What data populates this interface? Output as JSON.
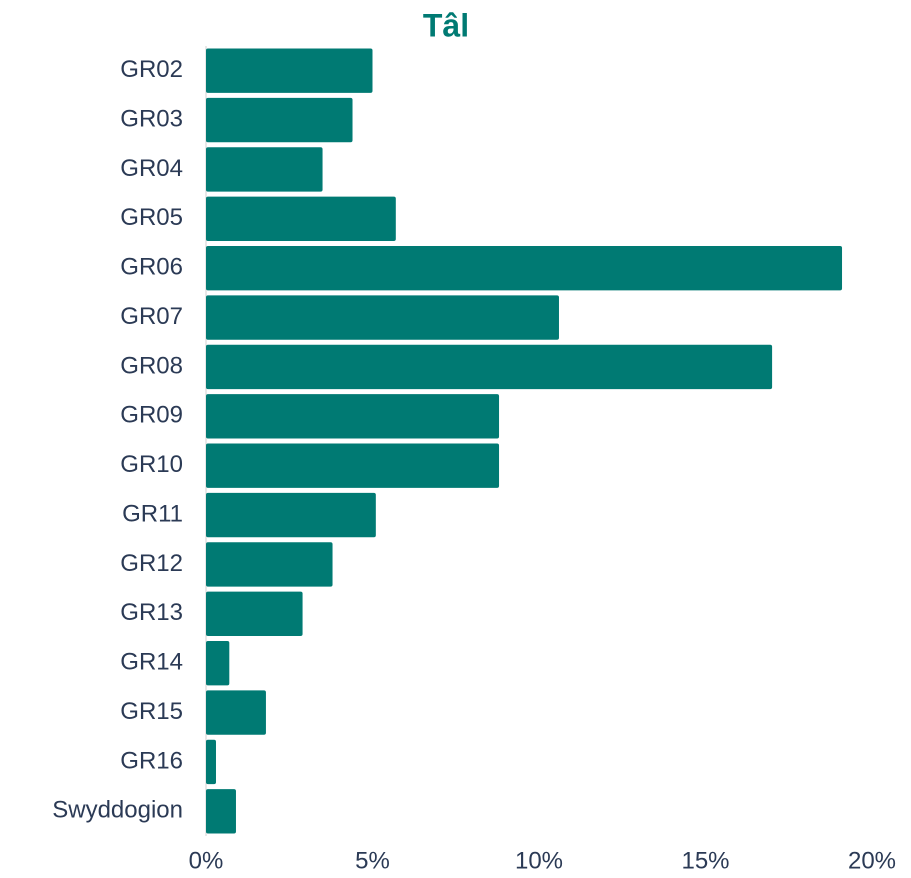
{
  "chart_data": {
    "type": "bar",
    "orientation": "horizontal",
    "title": "Tâl",
    "categories": [
      "GR02",
      "GR03",
      "GR04",
      "GR05",
      "GR06",
      "GR07",
      "GR08",
      "GR09",
      "GR10",
      "GR11",
      "GR12",
      "GR13",
      "GR14",
      "GR15",
      "GR16",
      "Swyddogion"
    ],
    "values": [
      5.0,
      4.4,
      3.5,
      5.7,
      19.1,
      10.6,
      17.0,
      8.8,
      8.8,
      5.1,
      3.8,
      2.9,
      0.7,
      1.8,
      0.3,
      0.9
    ],
    "color": "#007a73",
    "xlim": [
      0,
      20
    ],
    "xticks": [
      {
        "value": 0,
        "label": "0%"
      },
      {
        "value": 5,
        "label": "5%"
      },
      {
        "value": 10,
        "label": "10%"
      },
      {
        "value": 15,
        "label": "15%"
      },
      {
        "value": 20,
        "label": "20%"
      }
    ],
    "grid": false
  }
}
